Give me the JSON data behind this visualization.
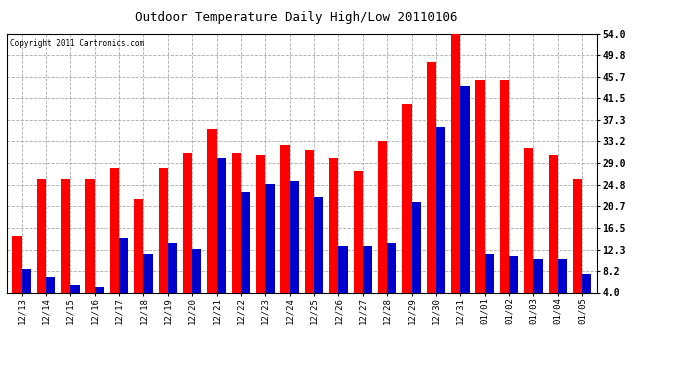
{
  "title": "Outdoor Temperature Daily High/Low 20110106",
  "copyright": "Copyright 2011 Cartronics.com",
  "categories": [
    "12/13",
    "12/14",
    "12/15",
    "12/16",
    "12/17",
    "12/18",
    "12/19",
    "12/20",
    "12/21",
    "12/22",
    "12/23",
    "12/24",
    "12/25",
    "12/26",
    "12/27",
    "12/28",
    "12/29",
    "12/30",
    "12/31",
    "01/01",
    "01/02",
    "01/03",
    "01/04",
    "01/05"
  ],
  "highs": [
    15.0,
    26.0,
    26.0,
    26.0,
    28.0,
    22.0,
    28.0,
    31.0,
    35.5,
    31.0,
    30.5,
    32.5,
    31.5,
    30.0,
    27.5,
    33.2,
    40.5,
    48.5,
    54.0,
    45.0,
    45.0,
    32.0,
    30.5,
    26.0
  ],
  "lows": [
    8.5,
    7.0,
    5.5,
    5.0,
    14.5,
    11.5,
    13.5,
    12.5,
    30.0,
    23.5,
    25.0,
    25.5,
    22.5,
    13.0,
    13.0,
    13.5,
    21.5,
    36.0,
    44.0,
    11.5,
    11.0,
    10.5,
    10.5,
    7.5
  ],
  "high_color": "#ff0000",
  "low_color": "#0000cc",
  "background_color": "#ffffff",
  "grid_color": "#aaaaaa",
  "yticks": [
    4.0,
    8.2,
    12.3,
    16.5,
    20.7,
    24.8,
    29.0,
    33.2,
    37.3,
    41.5,
    45.7,
    49.8,
    54.0
  ],
  "ymin": 4.0,
  "ymax": 54.0,
  "bar_width": 0.38
}
